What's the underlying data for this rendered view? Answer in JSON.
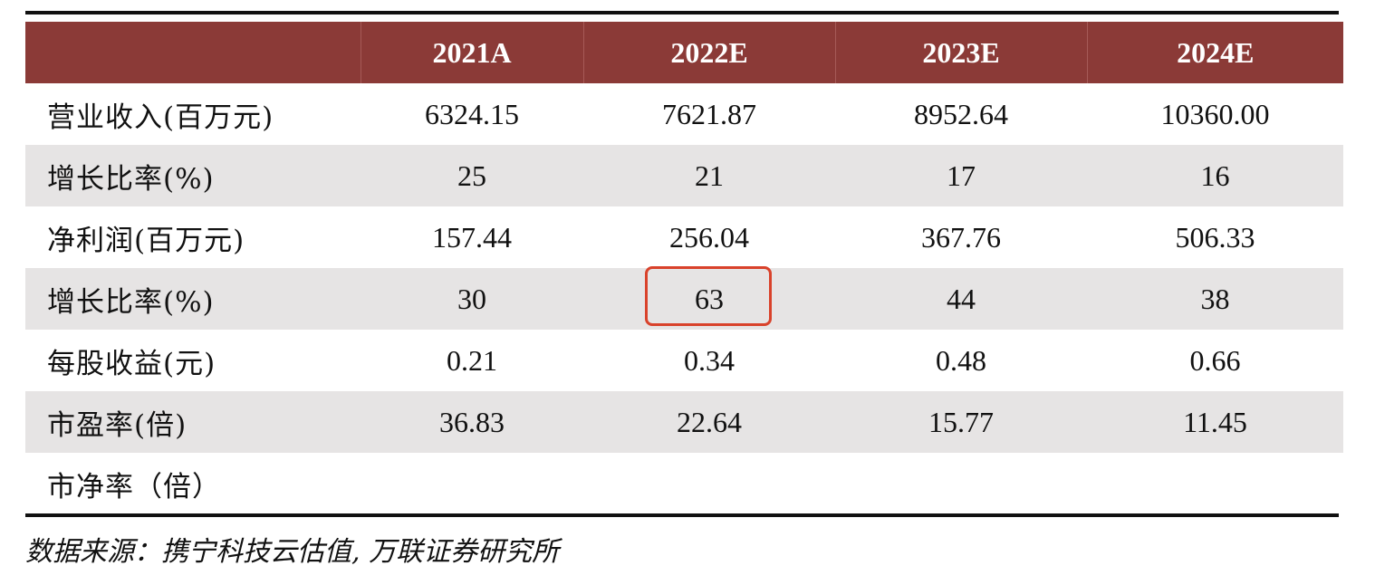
{
  "table": {
    "headers": [
      "",
      "2021A",
      "2022E",
      "2023E",
      "2024E"
    ],
    "rows": [
      {
        "label": "营业收入(百万元)",
        "values": [
          "6324.15",
          "7621.87",
          "8952.64",
          "10360.00"
        ]
      },
      {
        "label": "增长比率(%)",
        "values": [
          "25",
          "21",
          "17",
          "16"
        ]
      },
      {
        "label": "净利润(百万元)",
        "values": [
          "157.44",
          "256.04",
          "367.76",
          "506.33"
        ]
      },
      {
        "label": "增长比率(%)",
        "values": [
          "30",
          "63",
          "44",
          "38"
        ]
      },
      {
        "label": "每股收益(元)",
        "values": [
          "0.21",
          "0.34",
          "0.48",
          "0.66"
        ]
      },
      {
        "label": "市盈率(倍)",
        "values": [
          "36.83",
          "22.64",
          "15.77",
          "11.45"
        ]
      },
      {
        "label": "市净率（倍）",
        "values": [
          "",
          "",
          "",
          ""
        ]
      }
    ]
  },
  "source": "数据来源：携宁科技云估值, 万联证券研究所",
  "colors": {
    "header_bg": "#8b3a37",
    "stripe_bg": "#e6e4e4",
    "highlight_border": "#d9422b"
  }
}
